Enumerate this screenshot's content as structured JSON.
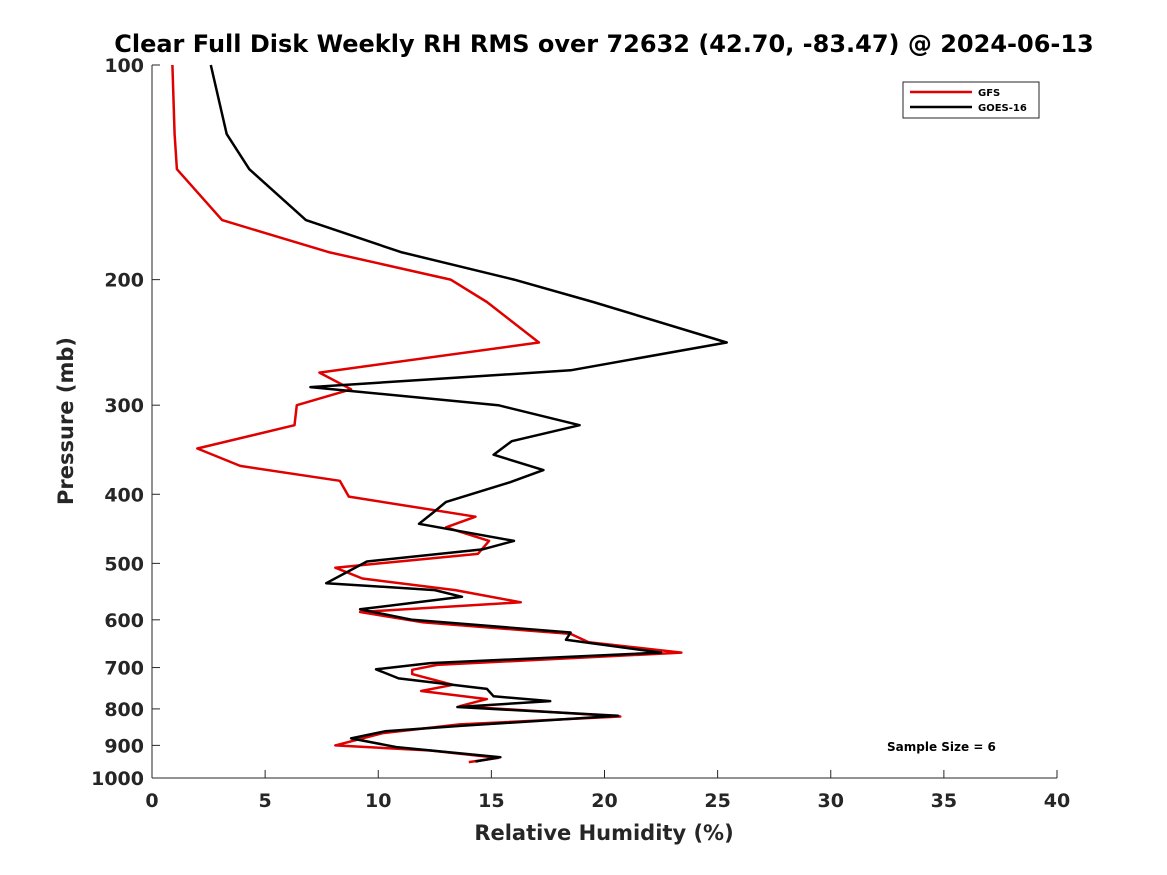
{
  "chart_data": {
    "type": "line",
    "title": "Clear Full Disk Weekly RH RMS over 72632 (42.70, -83.47) @ 2024-06-13",
    "xlabel": "Relative Humidity (%)",
    "ylabel": "Pressure (mb)",
    "xlim": [
      0,
      40
    ],
    "ylim": [
      1000,
      100
    ],
    "yscale": "log",
    "xticks": [
      0,
      5,
      10,
      15,
      20,
      25,
      30,
      35,
      40
    ],
    "yticks": [
      100,
      200,
      300,
      400,
      500,
      600,
      700,
      800,
      900,
      1000
    ],
    "grid": false,
    "legend_position": "top-right",
    "annotation": "Sample Size = 6",
    "series": [
      {
        "name": "GFS",
        "color": "#e00000",
        "points": [
          [
            0.9,
            100
          ],
          [
            1.0,
            125
          ],
          [
            1.1,
            140
          ],
          [
            3.1,
            165
          ],
          [
            7.8,
            183
          ],
          [
            13.2,
            200
          ],
          [
            14.8,
            215
          ],
          [
            17.1,
            245
          ],
          [
            7.4,
            270
          ],
          [
            8.8,
            285
          ],
          [
            6.4,
            300
          ],
          [
            6.3,
            320
          ],
          [
            2.0,
            345
          ],
          [
            3.9,
            365
          ],
          [
            8.3,
            383
          ],
          [
            8.7,
            403
          ],
          [
            14.3,
            430
          ],
          [
            13.0,
            445
          ],
          [
            14.9,
            465
          ],
          [
            14.4,
            485
          ],
          [
            8.1,
            507
          ],
          [
            9.3,
            525
          ],
          [
            13.4,
            545
          ],
          [
            16.3,
            567
          ],
          [
            9.2,
            585
          ],
          [
            12.0,
            605
          ],
          [
            18.5,
            628
          ],
          [
            19.3,
            645
          ],
          [
            23.4,
            667
          ],
          [
            12.6,
            694
          ],
          [
            11.5,
            705
          ],
          [
            11.5,
            715
          ],
          [
            13.3,
            740
          ],
          [
            11.9,
            755
          ],
          [
            14.8,
            775
          ],
          [
            13.6,
            793
          ],
          [
            20.7,
            820
          ],
          [
            13.6,
            841
          ],
          [
            10.2,
            865
          ],
          [
            8.1,
            900
          ],
          [
            12.3,
            915
          ],
          [
            15.3,
            937
          ],
          [
            14.0,
            950
          ]
        ]
      },
      {
        "name": "GOES-16",
        "color": "#000000",
        "points": [
          [
            2.6,
            100
          ],
          [
            3.3,
            125
          ],
          [
            4.3,
            140
          ],
          [
            6.8,
            165
          ],
          [
            11.0,
            183
          ],
          [
            16.0,
            200
          ],
          [
            19.5,
            215
          ],
          [
            25.4,
            245
          ],
          [
            18.5,
            268
          ],
          [
            7.0,
            283
          ],
          [
            15.3,
            300
          ],
          [
            18.9,
            320
          ],
          [
            15.9,
            337
          ],
          [
            15.1,
            352
          ],
          [
            17.3,
            370
          ],
          [
            15.8,
            385
          ],
          [
            13.0,
            410
          ],
          [
            12.4,
            425
          ],
          [
            11.8,
            440
          ],
          [
            16.0,
            465
          ],
          [
            14.6,
            478
          ],
          [
            9.5,
            497
          ],
          [
            7.7,
            533
          ],
          [
            12.5,
            545
          ],
          [
            13.7,
            557
          ],
          [
            9.2,
            580
          ],
          [
            11.5,
            600
          ],
          [
            18.5,
            625
          ],
          [
            18.3,
            640
          ],
          [
            22.5,
            667
          ],
          [
            12.3,
            690
          ],
          [
            9.9,
            704
          ],
          [
            10.9,
            725
          ],
          [
            14.8,
            750
          ],
          [
            15.1,
            768
          ],
          [
            17.6,
            780
          ],
          [
            13.5,
            795
          ],
          [
            20.6,
            818
          ],
          [
            13.7,
            845
          ],
          [
            10.3,
            860
          ],
          [
            8.8,
            880
          ],
          [
            10.8,
            905
          ],
          [
            15.4,
            935
          ],
          [
            14.3,
            948
          ]
        ]
      }
    ]
  }
}
